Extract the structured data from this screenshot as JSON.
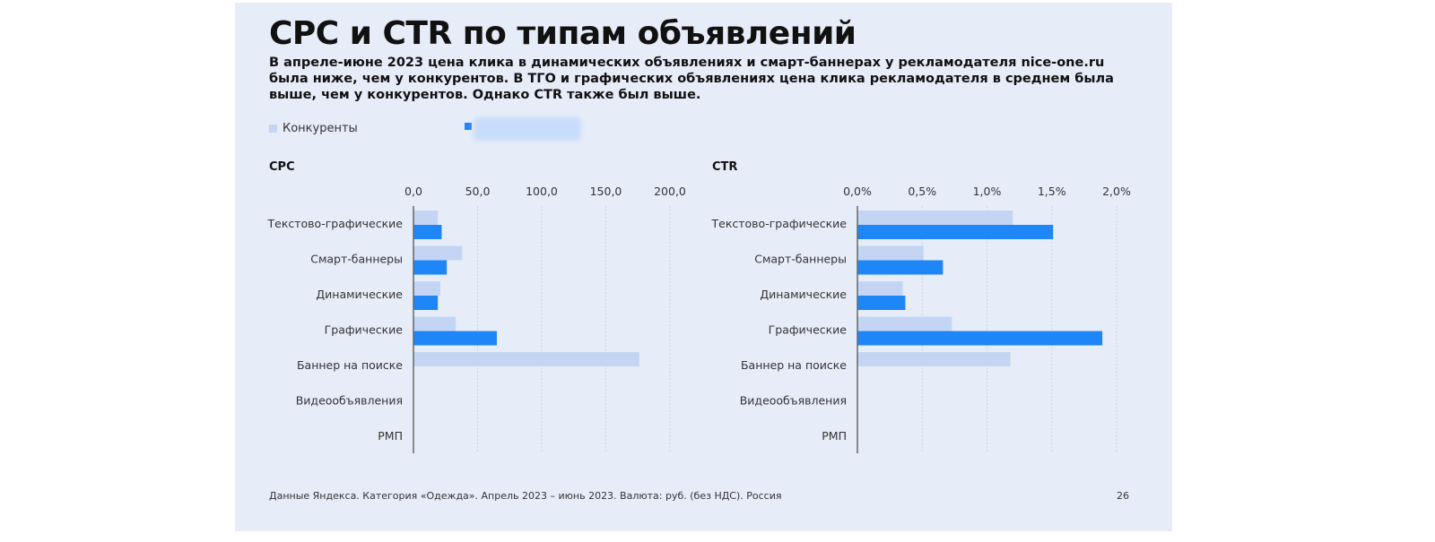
{
  "title": "CPC и CTR по типам объявлений",
  "subtitle": "В апреле-июне 2023 цена клика в динамических объявлениях и смарт-баннерах у рекламодателя nice-one.ru была ниже, чем у конкурентов. В ТГО и графических объявлениях цена клика рекламодателя в среднем была выше, чем у конкурентов. Однако CTR также был выше.",
  "legend": {
    "competitors": "Конкуренты"
  },
  "colors": {
    "competitors": "#c3d5f3",
    "advertiser": "#1f86f7"
  },
  "footer": "Данные Яндекса. Категория «Одежда». Апрель 2023 – июнь 2023. Валюта: руб. (без НДС). Россия",
  "page_number": "26",
  "chart_data": [
    {
      "type": "bar",
      "title": "CPC",
      "categories": [
        "Текстово-графические",
        "Смарт-баннеры",
        "Динамические",
        "Графические",
        "Баннер на поиске",
        "Видеообъявления",
        "РМП"
      ],
      "xlim": [
        0,
        200
      ],
      "ticks": [
        0,
        50,
        100,
        150,
        200
      ],
      "tick_labels": [
        "0,0",
        "50,0",
        "100,0",
        "150,0",
        "200,0"
      ],
      "series": [
        {
          "name": "Конкуренты",
          "values": [
            19,
            38,
            21,
            33,
            176,
            null,
            null
          ]
        },
        {
          "name": "nice-one.ru",
          "values": [
            22,
            26,
            19,
            65,
            null,
            null,
            null
          ]
        }
      ]
    },
    {
      "type": "bar",
      "title": "CTR",
      "categories": [
        "Текстово-графические",
        "Смарт-баннеры",
        "Динамические",
        "Графические",
        "Баннер на поиске",
        "Видеообъявления",
        "РМП"
      ],
      "xlim": [
        0,
        2
      ],
      "ticks": [
        0,
        0.5,
        1,
        1.5,
        2
      ],
      "tick_labels": [
        "0,0%",
        "0,5%",
        "1,0%",
        "1,5%",
        "2,0%"
      ],
      "series": [
        {
          "name": "Конкуренты",
          "values": [
            1.2,
            0.51,
            0.35,
            0.73,
            1.18,
            null,
            null
          ]
        },
        {
          "name": "nice-one.ru",
          "values": [
            1.51,
            0.66,
            0.37,
            1.89,
            null,
            null,
            null
          ]
        }
      ]
    }
  ]
}
